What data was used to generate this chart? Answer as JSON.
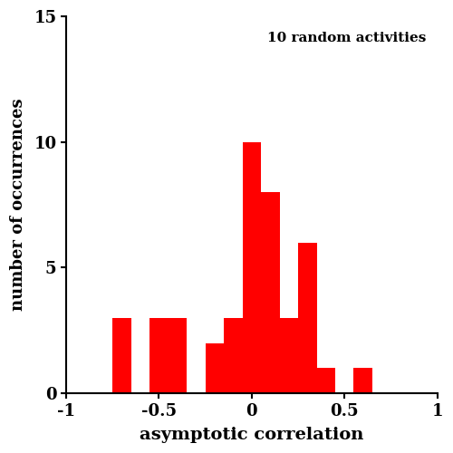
{
  "annotation": "10 random activities",
  "xlabel": "asymptotic correlation",
  "ylabel": "number of occurrences",
  "bar_color": "#ff0000",
  "xlim": [
    -1,
    1
  ],
  "ylim": [
    0,
    15
  ],
  "yticks": [
    0,
    5,
    10,
    15
  ],
  "xticks": [
    -1,
    -0.5,
    0,
    0.5,
    1
  ],
  "xticklabels": [
    "-1",
    "-0.5",
    "0",
    "0.5",
    "1"
  ],
  "bin_edges": [
    -0.75,
    -0.65,
    -0.55,
    -0.45,
    -0.35,
    -0.25,
    -0.15,
    -0.05,
    0.05,
    0.15,
    0.25,
    0.35,
    0.45,
    0.55,
    0.65
  ],
  "counts": [
    3,
    0,
    3,
    3,
    0,
    2,
    3,
    10,
    8,
    3,
    6,
    1,
    0,
    1,
    0
  ]
}
